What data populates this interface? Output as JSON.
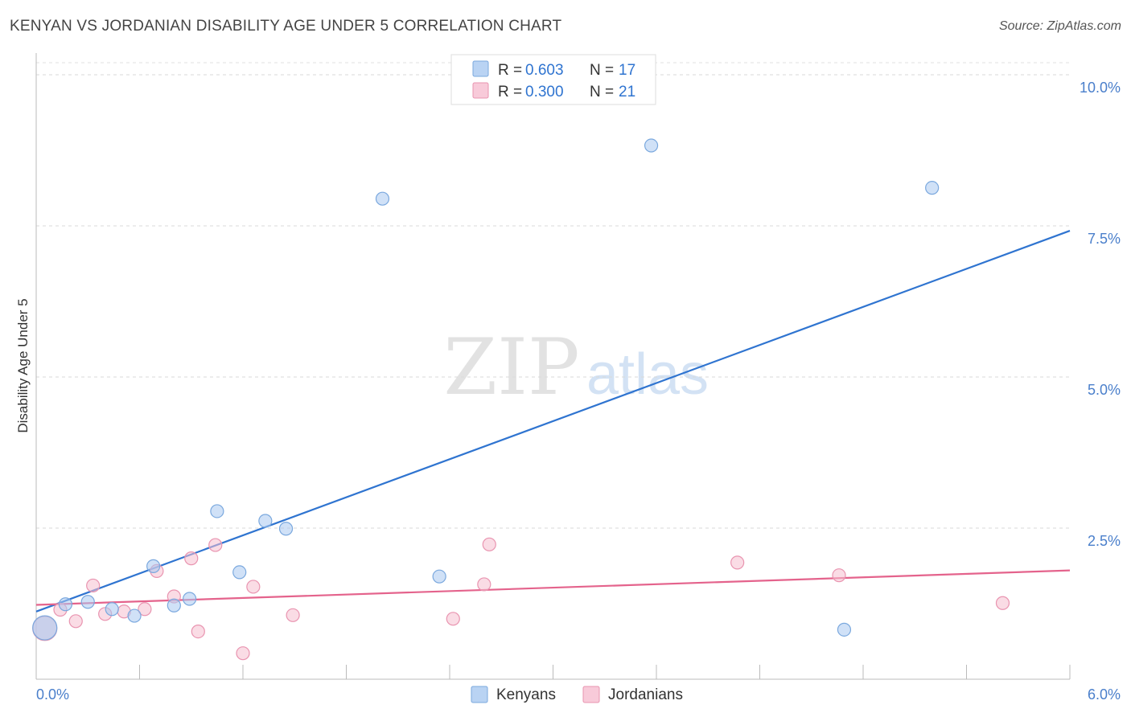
{
  "chart_data": {
    "type": "scatter",
    "title": "KENYAN VS JORDANIAN DISABILITY AGE UNDER 5 CORRELATION CHART",
    "source": "Source: ZipAtlas.com",
    "ylabel": "Disability Age Under 5",
    "xlabel": "",
    "xlim": [
      0,
      6
    ],
    "ylim": [
      0,
      10.2
    ],
    "x_tick_labels": [
      {
        "value": 0,
        "label": "0.0%"
      },
      {
        "value": 6,
        "label": "6.0%"
      }
    ],
    "y_ticks": [
      {
        "value": 2.5,
        "label": "2.5%"
      },
      {
        "value": 5,
        "label": "5.0%"
      },
      {
        "value": 7.5,
        "label": "7.5%"
      },
      {
        "value": 10,
        "label": "10.0%"
      }
    ],
    "x_minor_ticks": [
      0,
      0.6,
      1.2,
      1.8,
      2.4,
      3.0,
      3.6,
      4.2,
      4.8,
      5.4,
      6.0
    ],
    "watermark": {
      "part1": "ZIP",
      "part2": "atlas"
    },
    "legend": {
      "rows": [
        {
          "r_label": "R = ",
          "r_value": "0.603",
          "n_label": "N = ",
          "n_value": "17"
        },
        {
          "r_label": "R = ",
          "r_value": "0.300",
          "n_label": "N = ",
          "n_value": "21"
        }
      ],
      "bottom": [
        "Kenyans",
        "Jordanians"
      ]
    },
    "series": [
      {
        "name": "Kenyans",
        "color": "#a9c9f0",
        "stroke": "#7aa8de",
        "line_color": "#2f74d0",
        "trend": {
          "x": [
            0,
            6
          ],
          "y": [
            1.12,
            7.42
          ]
        },
        "points": [
          {
            "x": 0.05,
            "y": 0.85,
            "big": true
          },
          {
            "x": 0.17,
            "y": 1.24
          },
          {
            "x": 0.3,
            "y": 1.28
          },
          {
            "x": 0.44,
            "y": 1.16
          },
          {
            "x": 0.57,
            "y": 1.05
          },
          {
            "x": 0.68,
            "y": 1.87
          },
          {
            "x": 0.8,
            "y": 1.22
          },
          {
            "x": 0.89,
            "y": 1.33
          },
          {
            "x": 1.05,
            "y": 2.78
          },
          {
            "x": 1.18,
            "y": 1.77
          },
          {
            "x": 1.33,
            "y": 2.62
          },
          {
            "x": 1.45,
            "y": 2.49
          },
          {
            "x": 2.01,
            "y": 7.95
          },
          {
            "x": 2.34,
            "y": 1.7
          },
          {
            "x": 3.57,
            "y": 8.83
          },
          {
            "x": 4.69,
            "y": 0.82
          },
          {
            "x": 5.2,
            "y": 8.13
          }
        ]
      },
      {
        "name": "Jordanians",
        "color": "#f6bfd0",
        "stroke": "#e994b0",
        "line_color": "#e4638c",
        "trend": {
          "x": [
            0,
            6
          ],
          "y": [
            1.23,
            1.8
          ]
        },
        "points": [
          {
            "x": 0.05,
            "y": 0.84,
            "big": true
          },
          {
            "x": 0.14,
            "y": 1.15
          },
          {
            "x": 0.23,
            "y": 0.96
          },
          {
            "x": 0.33,
            "y": 1.55
          },
          {
            "x": 0.4,
            "y": 1.08
          },
          {
            "x": 0.51,
            "y": 1.12
          },
          {
            "x": 0.63,
            "y": 1.16
          },
          {
            "x": 0.7,
            "y": 1.79
          },
          {
            "x": 0.8,
            "y": 1.37
          },
          {
            "x": 0.9,
            "y": 2.0
          },
          {
            "x": 0.94,
            "y": 0.79
          },
          {
            "x": 1.04,
            "y": 2.22
          },
          {
            "x": 1.2,
            "y": 0.43
          },
          {
            "x": 1.26,
            "y": 1.53
          },
          {
            "x": 1.49,
            "y": 1.06
          },
          {
            "x": 2.42,
            "y": 1.0
          },
          {
            "x": 2.6,
            "y": 1.57
          },
          {
            "x": 2.63,
            "y": 2.23
          },
          {
            "x": 4.07,
            "y": 1.93
          },
          {
            "x": 4.66,
            "y": 1.72
          },
          {
            "x": 5.61,
            "y": 1.26
          }
        ]
      }
    ]
  }
}
